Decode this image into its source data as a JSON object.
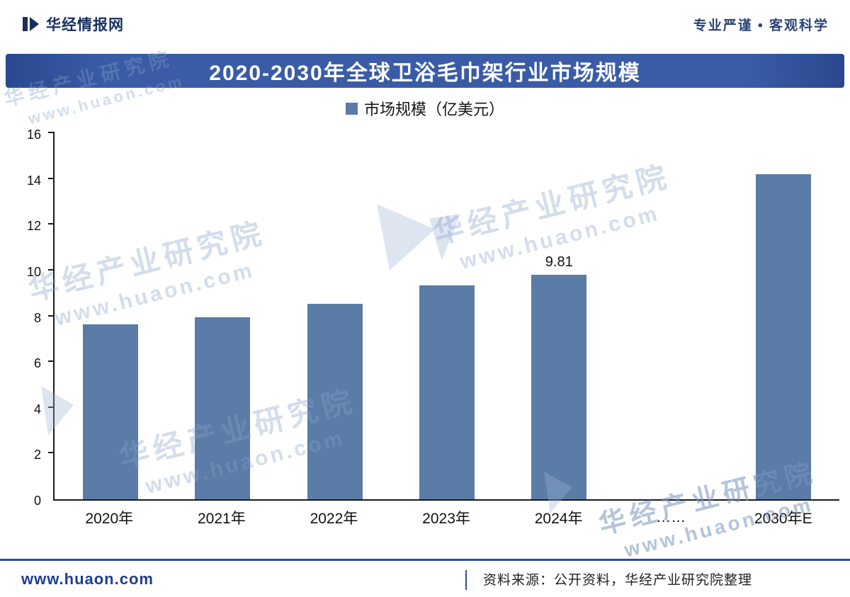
{
  "header": {
    "brand": "华经情报网",
    "tagline": "专业严谨 • 客观科学"
  },
  "banner": {
    "title": "2020-2030年全球卫浴毛巾架行业市场规模"
  },
  "legend": {
    "label": "市场规模（亿美元）"
  },
  "chart_data": {
    "type": "bar",
    "title": "2020-2030年全球卫浴毛巾架行业市场规模",
    "categories": [
      "2020年",
      "2021年",
      "2022年",
      "2023年",
      "2024年",
      "……",
      "2030年E"
    ],
    "values": [
      7.65,
      7.95,
      8.55,
      9.35,
      9.81,
      null,
      14.2
    ],
    "point_labels": [
      null,
      null,
      null,
      null,
      "9.81",
      null,
      null
    ],
    "xlabel": "",
    "ylabel": "",
    "ylim": [
      0,
      16
    ],
    "ytick_step": 2,
    "grid": false,
    "legend": [
      "市场规模（亿美元）"
    ],
    "legend_position": "top",
    "bar_color": "#5b7ca6"
  },
  "watermark": {
    "line1": "华经产业研究院",
    "line2": "www.huaon.com"
  },
  "footer": {
    "site": "www.huaon.com",
    "source": "资料来源：公开资料，华经产业研究院整理"
  }
}
